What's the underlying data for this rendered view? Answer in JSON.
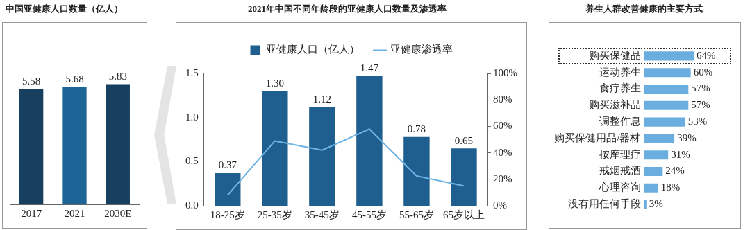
{
  "chart_data": [
    {
      "type": "bar",
      "title": "中国亚健康人口数量（亿人）",
      "categories": [
        "2017",
        "2021",
        "2030E"
      ],
      "values": [
        5.58,
        5.68,
        5.83
      ],
      "colors": [
        "#173f5f",
        "#1d6596",
        "#173f5f"
      ],
      "data_labels": true,
      "tick_labels": "x"
    },
    {
      "type": "bar",
      "title": "2021年中国不同年龄段的亚健康人口数量及渗透率",
      "categories": [
        "18-25岁",
        "25-35岁",
        "35-45岁",
        "45-55岁",
        "55-65岁",
        "65岁以上"
      ],
      "series": [
        {
          "name": "亚健康人口（亿人）",
          "type": "bar",
          "color": "#1f5f8f",
          "values": [
            0.37,
            1.3,
            1.12,
            1.47,
            0.78,
            0.65
          ],
          "value_labels": [
            "0.37",
            "1.30",
            "1.12",
            "1.47",
            "0.78",
            "0.65"
          ]
        },
        {
          "name": "亚健康渗透率",
          "type": "line",
          "axis": "y2",
          "color": "#6db3e3",
          "values": [
            8,
            49,
            42,
            58,
            22.5,
            15
          ]
        }
      ],
      "ylim": [
        0,
        1.5
      ],
      "yticks": [
        {
          "value": 0,
          "label": "0.0"
        },
        0.5,
        {
          "value": 1,
          "label": "1.0"
        },
        1.5
      ],
      "y2lim": [
        0,
        100
      ],
      "y2ticks": [
        {
          "value": 0,
          "label": "0%"
        },
        {
          "value": 20,
          "label": "20%"
        },
        {
          "value": 40,
          "label": "40%"
        },
        {
          "value": 60,
          "label": "60%"
        },
        {
          "value": 80,
          "label": "80%"
        },
        {
          "value": 100,
          "label": "100%"
        }
      ],
      "legend": "top",
      "grid": false
    },
    {
      "type": "bar",
      "orientation": "horizontal",
      "title": "养生人群改善健康的主要方式",
      "categories": [
        "购买保健品",
        "运动养生",
        "食疗养生",
        "购买滋补品",
        "调整作息",
        "购买保健用品/器材",
        "按摩理疗",
        "戒烟戒酒",
        "心理咨询",
        "没有用任何手段"
      ],
      "values": [
        64,
        60,
        57,
        57,
        53,
        39,
        31,
        24,
        18,
        3
      ],
      "color": "#6aaee0",
      "value_labels": [
        "64%",
        "60%",
        "57%",
        "57%",
        "53%",
        "39%",
        "31%",
        "24%",
        "18%",
        "3%"
      ],
      "tick_labels": "y"
    }
  ]
}
